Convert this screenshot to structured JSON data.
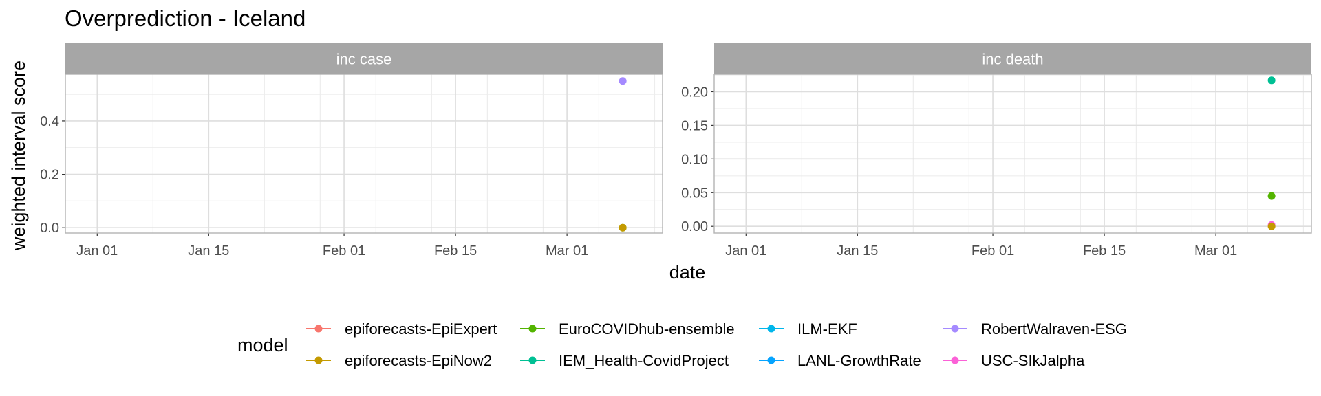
{
  "title": "Overprediction - Iceland",
  "xlabel": "date",
  "ylabel": "weighted interval score",
  "legend_title": "model",
  "colors": {
    "strip_bg": "#a6a6a6",
    "strip_text": "#ffffff",
    "grid_major": "#dedede",
    "grid_minor": "#ededed",
    "panel_border": "#b3b3b3",
    "tick_text": "#4d4d4d"
  },
  "legend": [
    {
      "name": "epiforecasts-EpiExpert",
      "color": "#F8766D"
    },
    {
      "name": "epiforecasts-EpiNow2",
      "color": "#C49A00"
    },
    {
      "name": "EuroCOVIDhub-ensemble",
      "color": "#53B400"
    },
    {
      "name": "IEM_Health-CovidProject",
      "color": "#00C094"
    },
    {
      "name": "ILM-EKF",
      "color": "#00B6EB"
    },
    {
      "name": "LANL-GrowthRate",
      "color": "#06A4FF"
    },
    {
      "name": "RobertWalraven-ESG",
      "color": "#A58AFF"
    },
    {
      "name": "USC-SIkJalpha",
      "color": "#FB61D7"
    }
  ],
  "chart_data": [
    {
      "type": "scatter",
      "facet": "inc case",
      "xlim": [
        "2020-12-28",
        "2021-03-13"
      ],
      "ylim": [
        -0.02,
        0.575
      ],
      "x_ticks": [
        "2021-01-01",
        "2021-01-15",
        "2021-02-01",
        "2021-02-15",
        "2021-03-01"
      ],
      "x_tick_labels": [
        "Jan 01",
        "Jan 15",
        "Feb 01",
        "Feb 15",
        "Mar 01"
      ],
      "y_ticks": [
        0.0,
        0.2,
        0.4
      ],
      "y_tick_labels": [
        "0.0",
        "0.2",
        "0.4"
      ],
      "series": [
        {
          "name": "RobertWalraven-ESG",
          "x": [
            "2021-03-08"
          ],
          "y": [
            0.55
          ]
        },
        {
          "name": "EuroCOVIDhub-ensemble",
          "x": [
            "2021-03-08"
          ],
          "y": [
            0.0
          ]
        },
        {
          "name": "epiforecasts-EpiNow2",
          "x": [
            "2021-03-08"
          ],
          "y": [
            0.0
          ]
        }
      ]
    },
    {
      "type": "scatter",
      "facet": "inc death",
      "xlim": [
        "2020-12-28",
        "2021-03-13"
      ],
      "ylim": [
        -0.01,
        0.226
      ],
      "x_ticks": [
        "2021-01-01",
        "2021-01-15",
        "2021-02-01",
        "2021-02-15",
        "2021-03-01"
      ],
      "x_tick_labels": [
        "Jan 01",
        "Jan 15",
        "Feb 01",
        "Feb 15",
        "Mar 01"
      ],
      "y_ticks": [
        0.0,
        0.05,
        0.1,
        0.15,
        0.2
      ],
      "y_tick_labels": [
        "0.00",
        "0.05",
        "0.10",
        "0.15",
        "0.20"
      ],
      "series": [
        {
          "name": "IEM_Health-CovidProject",
          "x": [
            "2021-03-08"
          ],
          "y": [
            0.217
          ]
        },
        {
          "name": "EuroCOVIDhub-ensemble",
          "x": [
            "2021-03-08"
          ],
          "y": [
            0.045
          ]
        },
        {
          "name": "USC-SIkJalpha",
          "x": [
            "2021-03-08"
          ],
          "y": [
            0.002
          ]
        },
        {
          "name": "epiforecasts-EpiNow2",
          "x": [
            "2021-03-08"
          ],
          "y": [
            0.0
          ]
        }
      ]
    }
  ]
}
